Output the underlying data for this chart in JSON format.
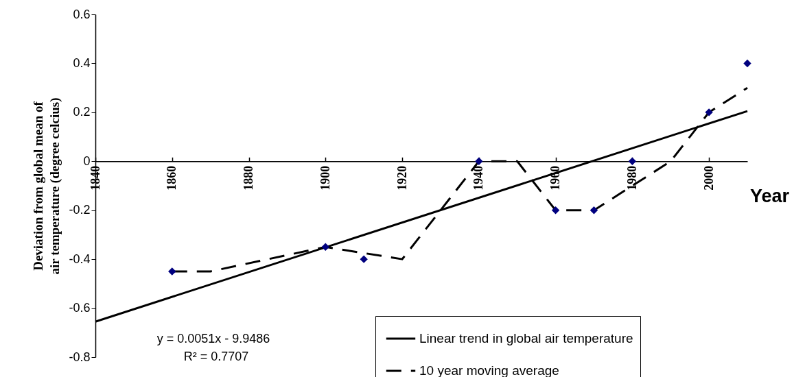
{
  "chart_data": {
    "type": "line",
    "xlabel": "Year",
    "ylabel": "Deviation from global mean of air temperature (degree celcius)",
    "xlim": [
      1840,
      2010
    ],
    "xticks": [
      1840,
      1860,
      1880,
      1900,
      1920,
      1940,
      1960,
      1980,
      2000
    ],
    "ylim": [
      -0.8,
      0.6
    ],
    "yticks": [
      -0.8,
      -0.6,
      -0.4,
      -0.2,
      0,
      0.2,
      0.4,
      0.6
    ],
    "legend": "bottom right",
    "annotations": [
      "y = 0.0051x - 9.9486",
      "R² = 0.7707"
    ],
    "series": [
      {
        "name": "Linear trend in global air temperature",
        "color": "#000000",
        "line_style": "solid",
        "marker": "none",
        "x": [
          1840,
          2010
        ],
        "values": [
          -0.655,
          0.205
        ]
      },
      {
        "name": "10 year moving average",
        "color": "#000000",
        "line_style": "dashed",
        "marker": "none",
        "x": [
          1860,
          1870,
          1900,
          1920,
          1940,
          1950,
          1960,
          1970,
          1980,
          1990,
          2000,
          2010
        ],
        "values": [
          -0.45,
          -0.45,
          -0.35,
          -0.4,
          0,
          0,
          -0.2,
          -0.2,
          -0.1,
          0,
          0.2,
          0.3
        ]
      },
      {
        "type": "scatter",
        "color": "#00007f",
        "marker": "diamond",
        "x": [
          1860,
          1900,
          1910,
          1940,
          1960,
          1970,
          1980,
          2000,
          2010
        ],
        "values": [
          -0.45,
          -0.35,
          -0.4,
          0,
          -0.2,
          -0.2,
          0,
          0.2,
          0.4
        ]
      }
    ]
  }
}
